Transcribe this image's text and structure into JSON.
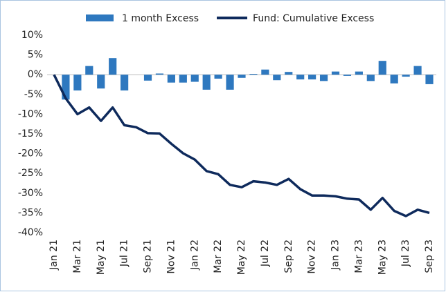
{
  "chart_data": {
    "type": "bar_line",
    "categories": [
      "Jan 21",
      null,
      "Mar 21",
      null,
      "May 21",
      null,
      "Jul 21",
      null,
      "Sep 21",
      null,
      "Nov 21",
      null,
      "Jan 22",
      null,
      "Mar 22",
      null,
      "May 22",
      null,
      "Jul 22",
      null,
      "Sep 22",
      null,
      "Nov 22",
      null,
      "Jan 23",
      null,
      "Mar 23",
      null,
      "May 23",
      null,
      "Jul 23",
      null,
      "Sep 23"
    ],
    "series": [
      {
        "name": "1 month Excess",
        "type": "bar",
        "color": "#2e78bf",
        "values": [
          0,
          -6.3,
          -4,
          2.2,
          -3.5,
          4.2,
          -4,
          0,
          -1.5,
          0.3,
          -2,
          -2,
          -1.8,
          -3.8,
          -1,
          -3.8,
          -0.8,
          0.2,
          1.3,
          -1.4,
          0.7,
          -1.2,
          -1.2,
          -1.6,
          0.8,
          -0.3,
          0.8,
          -1.6,
          3.5,
          -2.2,
          -0.5,
          2.2,
          -2.4
        ]
      },
      {
        "name": "Fund: Cumulative Excess",
        "type": "line",
        "color": "#0e2a5c",
        "values": [
          0,
          -6,
          -10,
          -8.3,
          -11.7,
          -8.3,
          -12.8,
          -13.3,
          -14.8,
          -14.9,
          -17.5,
          -19.9,
          -21.5,
          -24.4,
          -25.2,
          -27.9,
          -28.5,
          -27,
          -27.3,
          -27.9,
          -26.4,
          -29,
          -30.6,
          -30.6,
          -30.8,
          -31.4,
          -31.6,
          -34.2,
          -31.2,
          -34.5,
          -35.8,
          -34.2,
          -35
        ]
      }
    ],
    "ylim": [
      -40,
      10
    ],
    "yticks": [
      {
        "value": 10,
        "label": "10%"
      },
      {
        "value": 5,
        "label": "5%"
      },
      {
        "value": 0,
        "label": "0%"
      },
      {
        "value": -5,
        "label": "-5%"
      },
      {
        "value": -10,
        "label": "-10%"
      },
      {
        "value": -15,
        "label": "-15%"
      },
      {
        "value": -20,
        "label": "-20%"
      },
      {
        "value": -25,
        "label": "-25%"
      },
      {
        "value": -30,
        "label": "-30%"
      },
      {
        "value": -35,
        "label": "-35%"
      },
      {
        "value": -40,
        "label": "-40%"
      }
    ],
    "grid": false,
    "legend": "top"
  }
}
